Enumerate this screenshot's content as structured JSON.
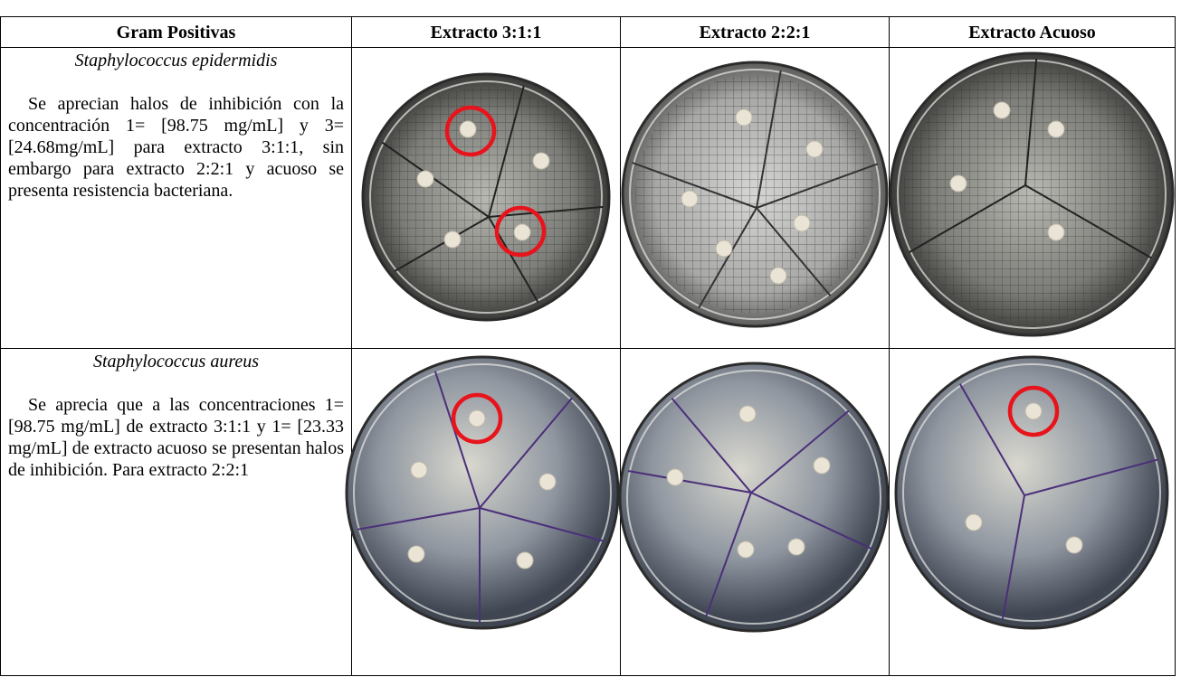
{
  "table": {
    "header": [
      "Gram Positivas",
      "Extracto 3:1:1",
      "Extracto 2:2:1",
      "Extracto Acuoso"
    ],
    "rows": [
      {
        "organism": "Staphylococcus epidermidis",
        "description": "Se aprecian halos de inhibición con la concentración 1= [98.75 mg/mL] y 3= [24.68mg/mL] para extracto 3:1:1, sin embargo para extracto 2:2:1 y acuoso se presenta resistencia bacteriana."
      },
      {
        "organism": "Staphylococcus aureus",
        "description": "Se aprecia que a las concentraciones 1= [98.75 mg/mL] de extracto 3:1:1 y 1= [23.33 mg/mL] de extracto acuoso se presentan halos de inhibición. Para extracto 2:2:1"
      }
    ]
  }
}
